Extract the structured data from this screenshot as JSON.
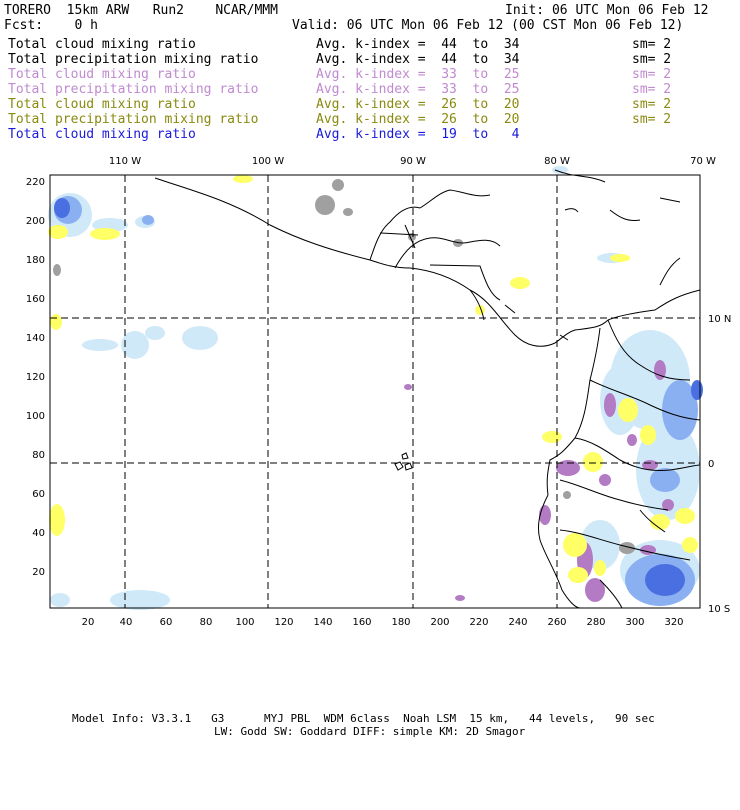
{
  "header": {
    "model": "TORERO  15km ARW   Run2    NCAR/MMM",
    "init": "Init: 06 UTC Mon 06 Feb 12",
    "fcst_label": "Fcst:    0 h",
    "valid": "Valid: 06 UTC Mon 06 Feb 12 (00 CST Mon 06 Feb 12)"
  },
  "legend": [
    {
      "field": "Total cloud mixing ratio",
      "index": "Avg. k-index =  44  to  34",
      "sm": "sm= 2",
      "color": "#000000"
    },
    {
      "field": "Total precipitation mixing ratio",
      "index": "Avg. k-index =  44  to  34",
      "sm": "sm= 2",
      "color": "#000000"
    },
    {
      "field": "Total cloud mixing ratio",
      "index": "Avg. k-index =  33  to  25",
      "sm": "sm= 2",
      "color": "#c08ad0"
    },
    {
      "field": "Total precipitation mixing ratio",
      "index": "Avg. k-index =  33  to  25",
      "sm": "sm= 2",
      "color": "#c08ad0"
    },
    {
      "field": "Total cloud mixing ratio",
      "index": "Avg. k-index =  26  to  20",
      "sm": "sm= 2",
      "color": "#8a8a10"
    },
    {
      "field": "Total precipitation mixing ratio",
      "index": "Avg. k-index =  26  to  20",
      "sm": "sm= 2",
      "color": "#8a8a10"
    },
    {
      "field": "Total cloud mixing ratio",
      "index": "Avg. k-index =  19  to   4",
      "sm": "",
      "color": "#1a1adc"
    }
  ],
  "map": {
    "lon_labels": [
      "110 W",
      "100 W",
      "90 W",
      "80 W",
      "70 W"
    ],
    "lat_labels": [
      "10 N",
      "0",
      "10 S"
    ],
    "x_ticks": [
      "20",
      "40",
      "60",
      "80",
      "100",
      "120",
      "140",
      "160",
      "180",
      "200",
      "220",
      "240",
      "260",
      "280",
      "300",
      "320"
    ],
    "y_ticks": [
      "220",
      "200",
      "180",
      "160",
      "140",
      "120",
      "100",
      "80",
      "60",
      "40",
      "20"
    ],
    "colors": {
      "gray": "#a0a0a0",
      "pink": "#b37bc4",
      "yellow": "#ffff66",
      "lightblue": "#cfe9f8",
      "blue": "#7fa6f0",
      "darkblue": "#4a6fe0"
    }
  },
  "footer": {
    "line1": "Model Info: V3.3.1   G3      MYJ PBL  WDM 6class  Noah LSM  15 km,   44 levels,   90 sec",
    "line2": "LW: Godd SW: Goddard DIFF: simple KM: 2D Smagor"
  }
}
